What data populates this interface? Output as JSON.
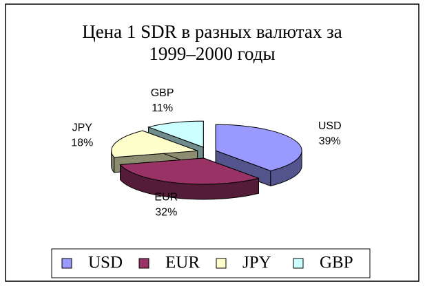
{
  "chart_data": {
    "type": "pie",
    "title": "Цена 1 SDR в разных валютах за 1999–2000 годы",
    "categories": [
      "USD",
      "EUR",
      "JPY",
      "GBP"
    ],
    "values": [
      39,
      32,
      18,
      11
    ],
    "value_labels": [
      "39%",
      "32%",
      "18%",
      "11%"
    ],
    "colors": [
      "#9999ff",
      "#993366",
      "#ffffcc",
      "#ccffff"
    ],
    "legend": "bottom"
  }
}
